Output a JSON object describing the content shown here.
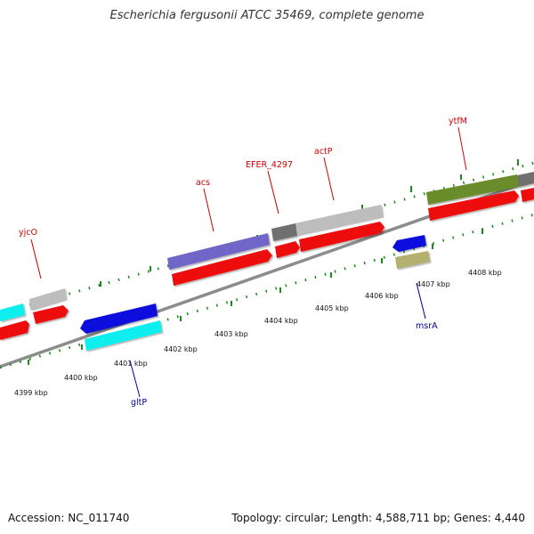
{
  "title": "Escherichia fergusonii ATCC 35469, complete genome",
  "footer": {
    "accession": "Accession: NC_011740",
    "summary": "Topology: circular; Length: 4,588,711 bp; Genes: 4,440"
  },
  "ticks": [
    {
      "label": "4399 kbp"
    },
    {
      "label": "4400 kbp"
    },
    {
      "label": "4401 kbp"
    },
    {
      "label": "4402 kbp"
    },
    {
      "label": "4403 kbp"
    },
    {
      "label": "4404 kbp"
    },
    {
      "label": "4405 kbp"
    },
    {
      "label": "4406 kbp"
    },
    {
      "label": "4407 kbp"
    },
    {
      "label": "4408 kbp"
    }
  ],
  "gene_labels": [
    {
      "name": "yjcO",
      "color": "#cc0000"
    },
    {
      "name": "acs",
      "color": "#cc0000"
    },
    {
      "name": "EFER_4297",
      "color": "#cc0000"
    },
    {
      "name": "actP",
      "color": "#cc0000"
    },
    {
      "name": "ytfM",
      "color": "#cc0000"
    },
    {
      "name": "gltP",
      "color": "#000099"
    },
    {
      "name": "msrA",
      "color": "#000099"
    }
  ],
  "colors": {
    "genome_line": "#8c8c8c",
    "ticks": "#1a8a1a",
    "cds_red": "#ee1111",
    "blue": "#1111dd",
    "cyan": "#11eeee",
    "gray": "#bdbdbd",
    "darkgray": "#707070",
    "purple": "#7066c8",
    "olive": "#6b8c2a",
    "khaki": "#b3b070"
  }
}
